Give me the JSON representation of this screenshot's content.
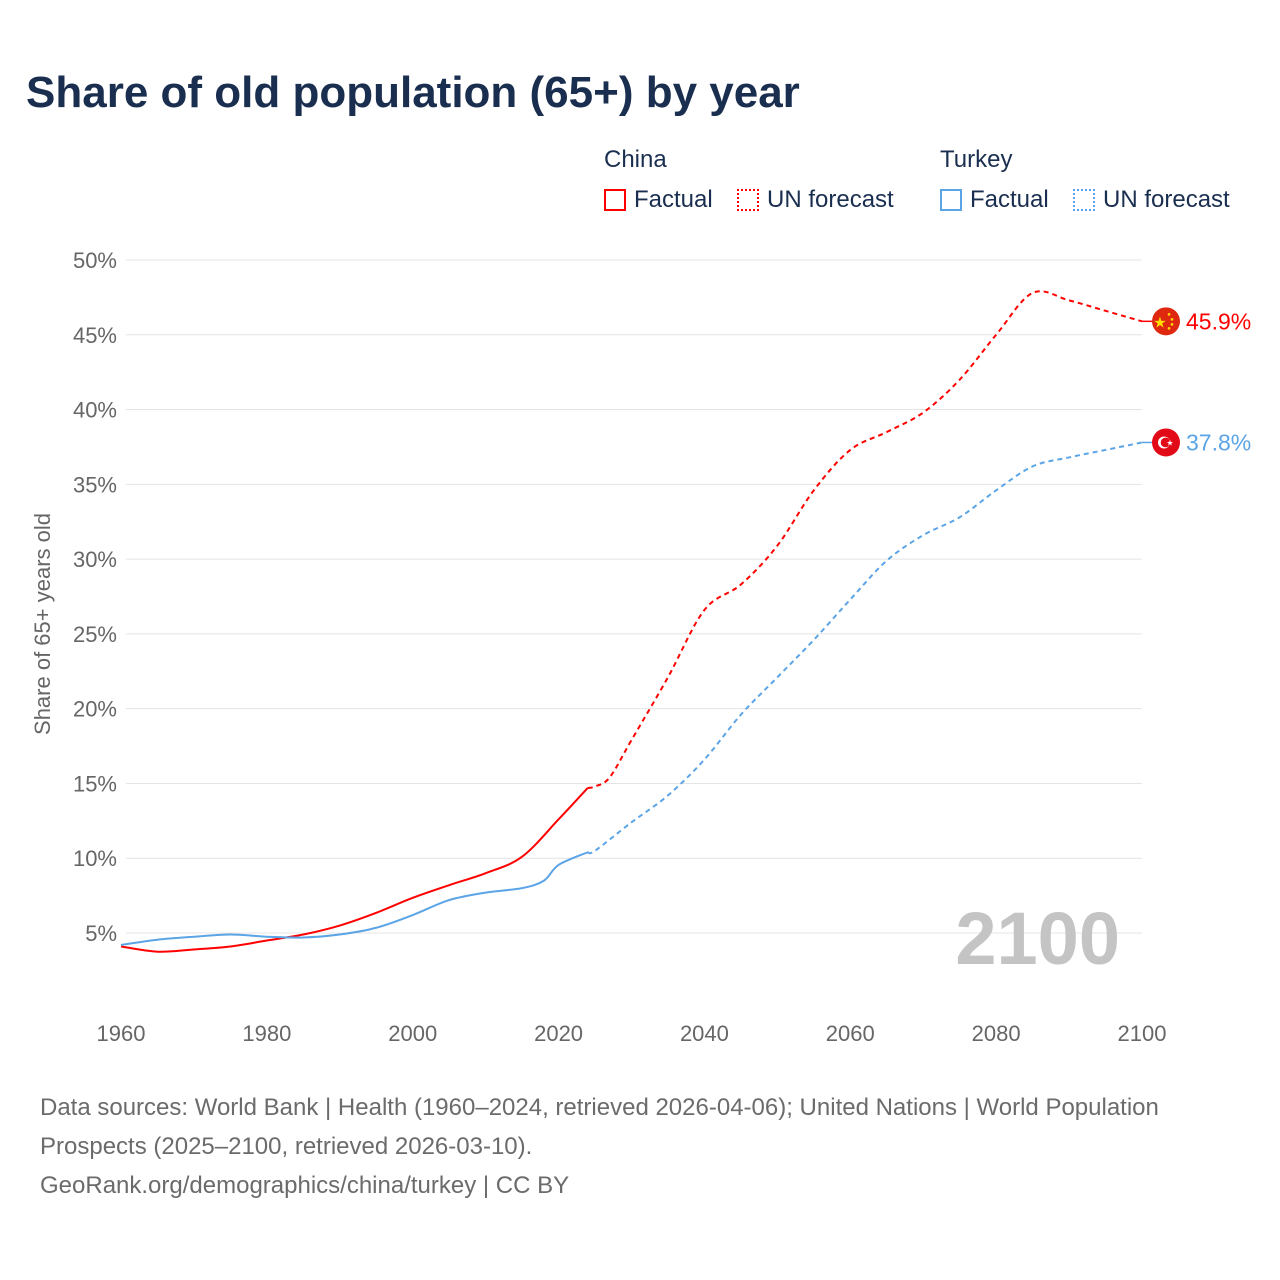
{
  "chart_data": {
    "type": "line",
    "title": "Share of old population (65+) by year",
    "xlabel": "",
    "ylabel": "Share of 65+ years old",
    "xlim": [
      1960,
      2100
    ],
    "ylim": [
      0,
      50
    ],
    "x_ticks": [
      "1960",
      "1980",
      "2000",
      "2020",
      "2040",
      "2060",
      "2080",
      "2100"
    ],
    "y_ticks": [
      "5%",
      "10%",
      "15%",
      "20%",
      "25%",
      "30%",
      "35%",
      "40%",
      "45%",
      "50%"
    ],
    "grid": true,
    "legend_placement": "top-right",
    "legend": {
      "china": "China",
      "turkey": "Turkey",
      "factual": "Factual",
      "forecast": "UN forecast"
    },
    "year_watermark": "2100",
    "colors": {
      "china": "#ff0000",
      "turkey": "#5ba4e6"
    },
    "series": [
      {
        "name": "China",
        "kind": "Factual",
        "x": [
          1960,
          1965,
          1970,
          1975,
          1980,
          1985,
          1990,
          1995,
          2000,
          2005,
          2010,
          2015,
          2020,
          2024
        ],
        "y": [
          4.1,
          3.75,
          3.9,
          4.1,
          4.5,
          4.9,
          5.5,
          6.35,
          7.35,
          8.2,
          9.0,
          10.1,
          12.6,
          14.7
        ]
      },
      {
        "name": "China",
        "kind": "UN forecast",
        "x": [
          2024,
          2025,
          2027,
          2030,
          2035,
          2040,
          2045,
          2050,
          2055,
          2060,
          2065,
          2070,
          2075,
          2080,
          2085,
          2090,
          2095,
          2100
        ],
        "y": [
          14.7,
          14.8,
          15.4,
          17.9,
          22.1,
          26.6,
          28.3,
          30.9,
          34.6,
          37.3,
          38.5,
          39.8,
          42.0,
          45.0,
          47.8,
          47.3,
          46.6,
          45.9
        ]
      },
      {
        "name": "Turkey",
        "kind": "Factual",
        "x": [
          1960,
          1965,
          1970,
          1975,
          1980,
          1985,
          1990,
          1995,
          2000,
          2005,
          2010,
          2015,
          2018,
          2020,
          2024
        ],
        "y": [
          4.2,
          4.55,
          4.75,
          4.9,
          4.75,
          4.7,
          4.9,
          5.35,
          6.2,
          7.2,
          7.7,
          8.0,
          8.5,
          9.55,
          10.4
        ]
      },
      {
        "name": "Turkey",
        "kind": "UN forecast",
        "x": [
          2024,
          2025,
          2030,
          2035,
          2040,
          2045,
          2050,
          2055,
          2060,
          2065,
          2070,
          2075,
          2080,
          2085,
          2090,
          2095,
          2100
        ],
        "y": [
          10.4,
          10.5,
          12.4,
          14.2,
          16.6,
          19.6,
          22.1,
          24.6,
          27.3,
          29.9,
          31.6,
          32.8,
          34.6,
          36.2,
          36.8,
          37.3,
          37.8
        ]
      }
    ],
    "end_labels": {
      "china": "45.9%",
      "turkey": "37.8%"
    }
  },
  "footer": {
    "sources": "Data sources: World Bank | Health (1960–2024, retrieved 2026-04-06); United Nations | World Population Prospects (2025–2100, retrieved 2026-03-10).",
    "link": "GeoRank.org/demographics/china/turkey | CC BY"
  }
}
